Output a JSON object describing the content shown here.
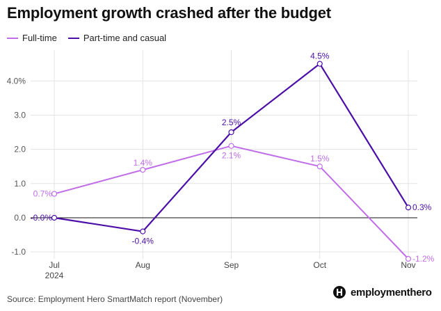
{
  "title": "Employment growth crashed after the budget",
  "source": "Source: Employment Hero SmartMatch report (November)",
  "brand": "employmenthero",
  "chart_data": {
    "type": "line",
    "title": "Employment growth crashed after the budget",
    "xlabel": "",
    "ylabel": "",
    "categories": [
      "Jul",
      "Aug",
      "Sep",
      "Oct",
      "Nov"
    ],
    "category_sublabels": [
      "2024",
      "",
      "",
      "",
      ""
    ],
    "ylim": [
      -1.2,
      4.9
    ],
    "yticks": [
      -1.0,
      0.0,
      1.0,
      2.0,
      3.0,
      4.0
    ],
    "ytick_labels": [
      "-1.0",
      "0.0",
      "1.0",
      "2.0",
      "3.0",
      "4.0%"
    ],
    "grid": true,
    "legend_position": "top-left",
    "series": [
      {
        "name": "Full-time",
        "color": "#c06ee8",
        "values": [
          0.7,
          1.4,
          2.1,
          1.5,
          -1.2
        ],
        "labels": [
          "0.7%",
          "1.4%",
          "2.1%",
          "1.5%",
          "-1.2%"
        ]
      },
      {
        "name": "Part-time and casual",
        "color": "#4b0fa8",
        "values": [
          0.0,
          -0.4,
          2.5,
          4.5,
          0.3
        ],
        "labels": [
          "-0.0%",
          "-0.4%",
          "2.5%",
          "4.5%",
          "0.3%"
        ]
      }
    ]
  }
}
